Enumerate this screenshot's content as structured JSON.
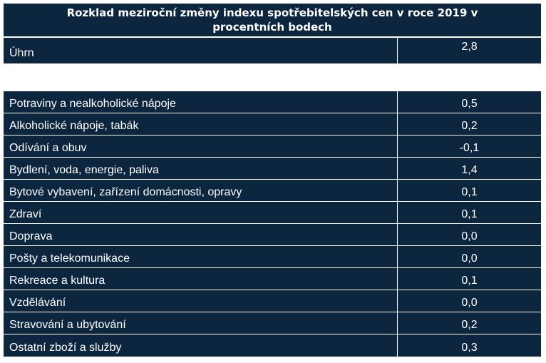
{
  "chart_data": {
    "type": "table",
    "title": "Rozklad meziroční změny indexu spotřebitelských cen v roce 2019 v procentních bodech",
    "total": {
      "label": "Úhrn",
      "value": "2,8"
    },
    "rows": [
      {
        "label": "Potraviny a nealkoholické nápoje",
        "value": "0,5"
      },
      {
        "label": "Alkoholické nápoje, tabák",
        "value": "0,2"
      },
      {
        "label": "Odívání a obuv",
        "value": "-0,1"
      },
      {
        "label": "Bydlení, voda, energie, paliva",
        "value": "1,4"
      },
      {
        "label": "Bytové vybavení, zařízení domácnosti, opravy",
        "value": "0,1"
      },
      {
        "label": "Zdraví",
        "value": "0,1"
      },
      {
        "label": "Doprava",
        "value": "0,0"
      },
      {
        "label": "Pošty a telekomunikace",
        "value": "0,0"
      },
      {
        "label": "Rekreace a kultura",
        "value": "0,1"
      },
      {
        "label": "Vzdělávání",
        "value": "0,0"
      },
      {
        "label": "Stravování a ubytování",
        "value": "0,2"
      },
      {
        "label": "Ostatní zboží a služby",
        "value": "0,3"
      }
    ],
    "colors": {
      "header_bg": "#0d2640",
      "text": "#ffffff"
    }
  }
}
